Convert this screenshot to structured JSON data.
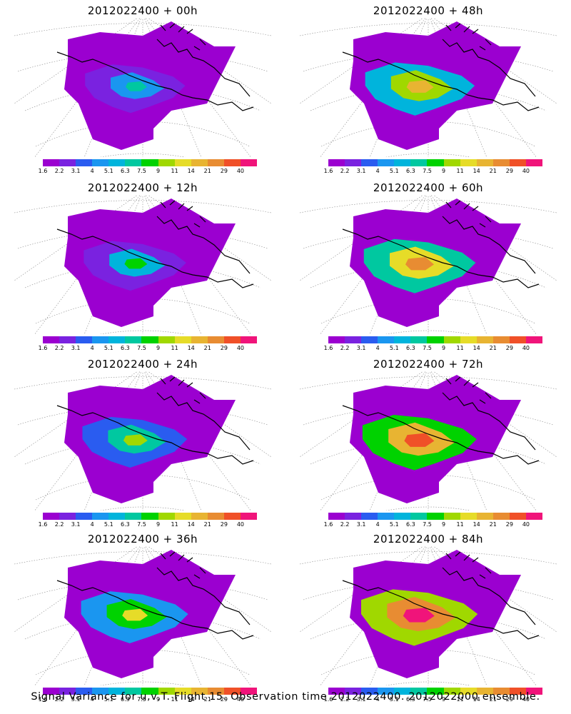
{
  "caption": "Signal Variance for u,v,T. Flight 15. Observation time 2012022400. 2012022000 ensemble.",
  "colorbar": {
    "labels": [
      "1.6",
      "2.2",
      "3.1",
      "4",
      "5.1",
      "6.3",
      "7.5",
      "9",
      "11",
      "14",
      "21",
      "29",
      "40"
    ],
    "colors": [
      "#9b00d0",
      "#7a22e0",
      "#2a5cf0",
      "#1a96f0",
      "#00b4dc",
      "#00c8a0",
      "#00d200",
      "#a0d800",
      "#e6dc28",
      "#e8b432",
      "#e88c32",
      "#f05028",
      "#f0147a"
    ]
  },
  "panels": [
    {
      "title": "2012022400 + 00h",
      "level": 0
    },
    {
      "title": "2012022400 + 48h",
      "level": 4
    },
    {
      "title": "2012022400 + 12h",
      "level": 1
    },
    {
      "title": "2012022400 + 60h",
      "level": 5
    },
    {
      "title": "2012022400 + 24h",
      "level": 2
    },
    {
      "title": "2012022400 + 72h",
      "level": 6
    },
    {
      "title": "2012022400 + 36h",
      "level": 3
    },
    {
      "title": "2012022400 + 84h",
      "level": 7
    }
  ]
}
